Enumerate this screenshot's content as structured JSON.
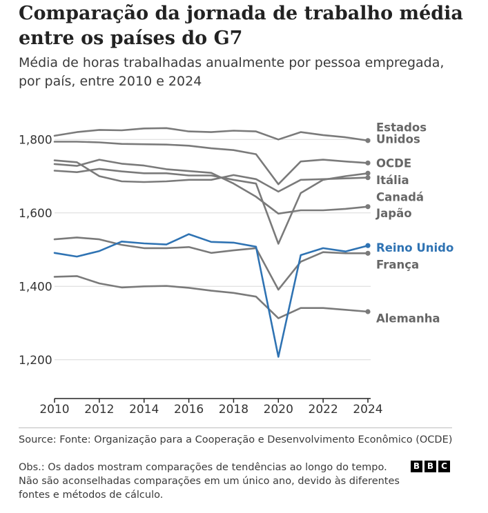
{
  "title": "Comparação da jornada de trabalho média entre os países do G7",
  "subtitle": "Média de horas trabalhadas anualmente por pessoa empregada, por país, entre 2010 e 2024",
  "source": "Source: Fonte: Organização para a Cooperação e Desenvolvimento Econômico (OCDE)",
  "note": "Obs.: Os dados mostram comparações de tendências ao longo do tempo. Não são aconselhadas comparações em um único ano, devido às diferentes fontes e métodos de cálculo.",
  "logo_letters": [
    "B",
    "B",
    "C"
  ],
  "colors": {
    "gray": "#7a7a7a",
    "highlight": "#2f73b3",
    "grid": "#d8d8d8",
    "axis": "#222222"
  },
  "chart_data": {
    "type": "line",
    "title": "Comparação da jornada de trabalho média entre os países do G7",
    "xlabel": "",
    "ylabel": "",
    "x": [
      2010,
      2011,
      2012,
      2013,
      2014,
      2015,
      2016,
      2017,
      2018,
      2019,
      2020,
      2021,
      2022,
      2023,
      2024
    ],
    "xticks": [
      "2010",
      "2012",
      "2014",
      "2016",
      "2018",
      "2020",
      "2022",
      "2024"
    ],
    "xtick_values": [
      2010,
      2012,
      2014,
      2016,
      2018,
      2020,
      2022,
      2024
    ],
    "yticks": [
      "1,200",
      "1,400",
      "1,600",
      "1,800"
    ],
    "ytick_values": [
      1200,
      1400,
      1600,
      1800
    ],
    "xlim": [
      2010,
      2024
    ],
    "ylim": [
      1100,
      1870
    ],
    "series": [
      {
        "name": "Estados Unidos",
        "label_lines": [
          "Estados",
          "Unidos"
        ],
        "highlight": false,
        "values": [
          1810,
          1820,
          1826,
          1825,
          1830,
          1831,
          1822,
          1820,
          1824,
          1822,
          1800,
          1820,
          1812,
          1806,
          1797
        ]
      },
      {
        "name": "OCDE",
        "label_lines": [
          "OCDE"
        ],
        "highlight": false,
        "values": [
          1794,
          1794,
          1792,
          1788,
          1787,
          1786,
          1783,
          1776,
          1771,
          1760,
          1678,
          1740,
          1745,
          1740,
          1736
        ]
      },
      {
        "name": "Itália",
        "label_lines": [
          "Itália"
        ],
        "highlight": false,
        "values": [
          1743,
          1738,
          1700,
          1686,
          1684,
          1686,
          1690,
          1690,
          1703,
          1692,
          1658,
          1690,
          1692,
          1694,
          1696
        ]
      },
      {
        "name": "Canadá",
        "label_lines": [
          "Canadá"
        ],
        "highlight": false,
        "values": [
          1715,
          1711,
          1720,
          1713,
          1708,
          1708,
          1702,
          1702,
          1690,
          1680,
          1516,
          1654,
          1690,
          1700,
          1708
        ]
      },
      {
        "name": "Japão",
        "label_lines": [
          "Japão"
        ],
        "highlight": false,
        "values": [
          1733,
          1728,
          1745,
          1734,
          1729,
          1719,
          1714,
          1709,
          1680,
          1644,
          1598,
          1607,
          1607,
          1611,
          1617
        ]
      },
      {
        "name": "Reino Unido",
        "label_lines": [
          "Reino Unido"
        ],
        "highlight": true,
        "values": [
          1491,
          1481,
          1496,
          1522,
          1517,
          1514,
          1542,
          1521,
          1519,
          1508,
          1208,
          1485,
          1504,
          1495,
          1511
        ]
      },
      {
        "name": "França",
        "label_lines": [
          "França"
        ],
        "highlight": false,
        "values": [
          1528,
          1533,
          1528,
          1513,
          1504,
          1504,
          1507,
          1491,
          1498,
          1504,
          1391,
          1467,
          1493,
          1490,
          1490
        ]
      },
      {
        "name": "Alemanha",
        "label_lines": [
          "Alemanha"
        ],
        "highlight": false,
        "values": [
          1426,
          1428,
          1408,
          1397,
          1400,
          1401,
          1396,
          1388,
          1382,
          1372,
          1313,
          1341,
          1341,
          1336,
          1331
        ]
      }
    ],
    "labels": [
      {
        "lines": [
          "Estados",
          "Unidos"
        ],
        "value": 1817,
        "highlight": false
      },
      {
        "lines": [
          "OCDE"
        ],
        "value": 1736,
        "highlight": false
      },
      {
        "lines": [
          "Itália"
        ],
        "value": 1690,
        "highlight": false
      },
      {
        "lines": [
          "Canadá"
        ],
        "value": 1644,
        "highlight": false
      },
      {
        "lines": [
          "Japão"
        ],
        "value": 1600,
        "highlight": false
      },
      {
        "lines": [
          "Reino Unido"
        ],
        "value": 1506,
        "highlight": true
      },
      {
        "lines": [
          "França"
        ],
        "value": 1460,
        "highlight": false
      },
      {
        "lines": [
          "Alemanha"
        ],
        "value": 1313,
        "highlight": false
      }
    ]
  }
}
